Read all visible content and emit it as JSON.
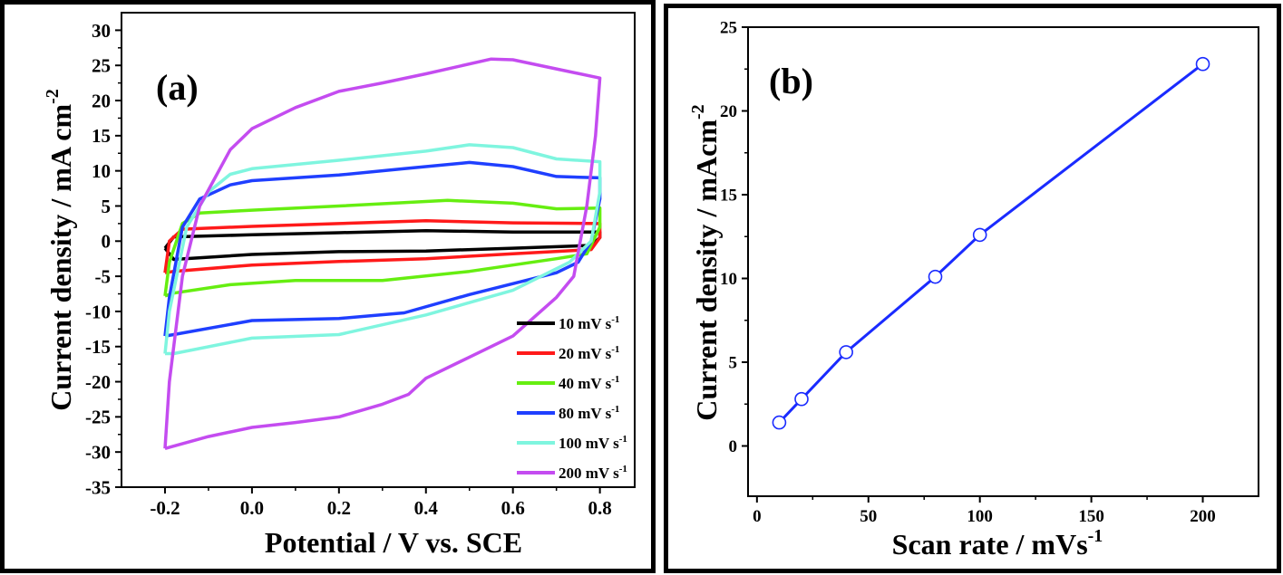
{
  "chart_data": [
    {
      "type": "line",
      "panel_label": "(a)",
      "xlabel": "Potential / V vs. SCE",
      "ylabel": "Current density / mA cm",
      "ylabel_sup": "-2",
      "xlim": [
        -0.3,
        0.88
      ],
      "ylim": [
        -35,
        32.5
      ],
      "xticks": [
        -0.2,
        0.0,
        0.2,
        0.4,
        0.6,
        0.8
      ],
      "xtick_labels": [
        "-0.2",
        "0.0",
        "0.2",
        "0.4",
        "0.6",
        "0.8"
      ],
      "yticks": [
        30,
        25,
        20,
        15,
        10,
        5,
        0,
        -5,
        -10,
        -15,
        -20,
        -25,
        -30,
        -35
      ],
      "ytick_labels": [
        "30",
        "25",
        "20",
        "15",
        "10",
        "5",
        "0",
        "-5",
        "-10",
        "-15",
        "-20",
        "-25",
        "-30",
        "-35"
      ],
      "grid": false,
      "legend_placement": "bottom-right",
      "series": [
        {
          "name": "10 mV s",
          "sup": "-1",
          "color": "#000000",
          "points": [
            [
              -0.2,
              -1
            ],
            [
              -0.18,
              0.6
            ],
            [
              0,
              0.9
            ],
            [
              0.2,
              1.2
            ],
            [
              0.4,
              1.5
            ],
            [
              0.6,
              1.3
            ],
            [
              0.8,
              1.3
            ],
            [
              0.8,
              0.5
            ],
            [
              0.78,
              -0.6
            ],
            [
              0.6,
              -1
            ],
            [
              0.4,
              -1.4
            ],
            [
              0.2,
              -1.5
            ],
            [
              0,
              -1.9
            ],
            [
              -0.18,
              -2.6
            ],
            [
              -0.2,
              -1
            ]
          ]
        },
        {
          "name": "20 mV s",
          "sup": "-1",
          "color": "#ff1a1a",
          "points": [
            [
              -0.2,
              -4.5
            ],
            [
              -0.19,
              0
            ],
            [
              -0.16,
              1.7
            ],
            [
              0,
              2.1
            ],
            [
              0.2,
              2.5
            ],
            [
              0.4,
              2.9
            ],
            [
              0.6,
              2.6
            ],
            [
              0.8,
              2.5
            ],
            [
              0.8,
              0.5
            ],
            [
              0.78,
              -1.2
            ],
            [
              0.6,
              -1.8
            ],
            [
              0.4,
              -2.5
            ],
            [
              0.2,
              -2.9
            ],
            [
              0,
              -3.4
            ],
            [
              -0.18,
              -4.3
            ],
            [
              -0.2,
              -4.5
            ]
          ]
        },
        {
          "name": "40 mV s",
          "sup": "-1",
          "color": "#66ee11",
          "points": [
            [
              -0.2,
              -7.8
            ],
            [
              -0.19,
              -3
            ],
            [
              -0.16,
              2.5
            ],
            [
              -0.12,
              4
            ],
            [
              0,
              4.4
            ],
            [
              0.2,
              5
            ],
            [
              0.45,
              5.8
            ],
            [
              0.6,
              5.4
            ],
            [
              0.7,
              4.6
            ],
            [
              0.8,
              4.7
            ],
            [
              0.8,
              2
            ],
            [
              0.77,
              -1.8
            ],
            [
              0.7,
              -2.5
            ],
            [
              0.5,
              -4.3
            ],
            [
              0.3,
              -5.6
            ],
            [
              0.1,
              -5.6
            ],
            [
              -0.05,
              -6.2
            ],
            [
              -0.18,
              -7.4
            ],
            [
              -0.2,
              -7.8
            ]
          ]
        },
        {
          "name": "80 mV s",
          "sup": "-1",
          "color": "#1f3fff",
          "points": [
            [
              -0.2,
              -13.5
            ],
            [
              -0.19,
              -8
            ],
            [
              -0.16,
              2
            ],
            [
              -0.12,
              6
            ],
            [
              -0.05,
              8
            ],
            [
              0,
              8.6
            ],
            [
              0.2,
              9.4
            ],
            [
              0.35,
              10.3
            ],
            [
              0.5,
              11.2
            ],
            [
              0.6,
              10.6
            ],
            [
              0.7,
              9.2
            ],
            [
              0.8,
              9
            ],
            [
              0.8,
              6
            ],
            [
              0.78,
              0
            ],
            [
              0.75,
              -3
            ],
            [
              0.7,
              -4.5
            ],
            [
              0.5,
              -7.6
            ],
            [
              0.35,
              -10.2
            ],
            [
              0.2,
              -11
            ],
            [
              0,
              -11.3
            ],
            [
              -0.18,
              -13.3
            ],
            [
              -0.2,
              -13.5
            ]
          ]
        },
        {
          "name": "100 mV s",
          "sup": "-1",
          "color": "#7ff5df",
          "points": [
            [
              -0.2,
              -16
            ],
            [
              -0.19,
              -10
            ],
            [
              -0.15,
              2
            ],
            [
              -0.1,
              7
            ],
            [
              -0.05,
              9.5
            ],
            [
              0,
              10.3
            ],
            [
              0.2,
              11.5
            ],
            [
              0.4,
              12.8
            ],
            [
              0.5,
              13.7
            ],
            [
              0.6,
              13.3
            ],
            [
              0.7,
              11.7
            ],
            [
              0.8,
              11.3
            ],
            [
              0.8,
              7
            ],
            [
              0.78,
              0
            ],
            [
              0.73,
              -3
            ],
            [
              0.6,
              -7
            ],
            [
              0.4,
              -10.5
            ],
            [
              0.2,
              -13.3
            ],
            [
              0,
              -13.8
            ],
            [
              -0.18,
              -16
            ],
            [
              -0.2,
              -16
            ]
          ]
        },
        {
          "name": "200 mV s",
          "sup": "-1",
          "color": "#c44cf0",
          "points": [
            [
              -0.2,
              -29.5
            ],
            [
              -0.19,
              -20
            ],
            [
              -0.16,
              -5
            ],
            [
              -0.12,
              5
            ],
            [
              -0.05,
              13
            ],
            [
              0,
              16
            ],
            [
              0.1,
              19
            ],
            [
              0.2,
              21.3
            ],
            [
              0.3,
              22.5
            ],
            [
              0.4,
              23.8
            ],
            [
              0.55,
              25.9
            ],
            [
              0.6,
              25.8
            ],
            [
              0.7,
              24.5
            ],
            [
              0.8,
              23.2
            ],
            [
              0.79,
              15
            ],
            [
              0.77,
              5
            ],
            [
              0.74,
              -5
            ],
            [
              0.7,
              -8
            ],
            [
              0.6,
              -13.5
            ],
            [
              0.5,
              -16.5
            ],
            [
              0.4,
              -19.5
            ],
            [
              0.36,
              -21.8
            ],
            [
              0.3,
              -23.2
            ],
            [
              0.2,
              -25
            ],
            [
              0.1,
              -25.8
            ],
            [
              0,
              -26.5
            ],
            [
              -0.1,
              -27.8
            ],
            [
              -0.2,
              -29.5
            ]
          ]
        }
      ]
    },
    {
      "type": "line",
      "panel_label": "(b)",
      "xlabel": "Scan rate / mVs",
      "xlabel_sup": "-1",
      "ylabel": "Current density / mAcm",
      "ylabel_sup": "-2",
      "xlim": [
        -4,
        225
      ],
      "ylim": [
        -3,
        25
      ],
      "xticks": [
        0,
        50,
        100,
        150,
        200
      ],
      "xtick_labels": [
        "0",
        "50",
        "100",
        "150",
        "200"
      ],
      "yticks": [
        0,
        5,
        10,
        15,
        20,
        25
      ],
      "ytick_labels": [
        "0",
        "5",
        "10",
        "15",
        "20",
        "25"
      ],
      "grid": false,
      "marker": "open-circle",
      "color": "#1a2bff",
      "x": [
        10,
        20,
        40,
        80,
        100,
        200
      ],
      "y": [
        1.4,
        2.8,
        5.6,
        10.1,
        12.6,
        22.8
      ]
    }
  ]
}
